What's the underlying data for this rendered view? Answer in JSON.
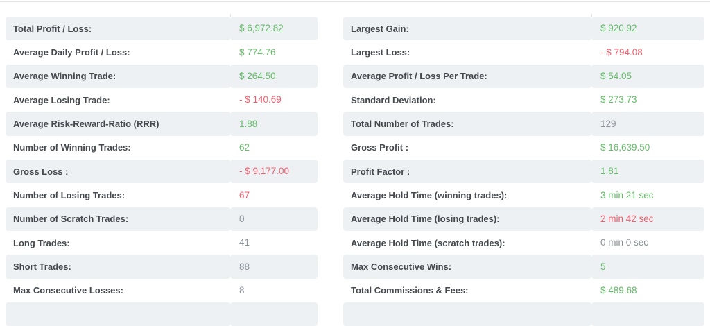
{
  "theme": {
    "shaded_row_bg": "#edf1f4",
    "label_color": "#45494e",
    "positive_color": "#66bb6a",
    "negative_color": "#ef5f6e",
    "neutral_color": "#8b9299",
    "rule_color": "#e2e2e2",
    "tick_color": "#e4e7ea"
  },
  "tables": {
    "left": {
      "rows": [
        {
          "label": "Total Profit / Loss:",
          "value": "$ 6,972.82",
          "tone": "positive"
        },
        {
          "label": "Average Daily Profit / Loss:",
          "value": "$ 774.76",
          "tone": "positive"
        },
        {
          "label": "Average Winning Trade:",
          "value": "$ 264.50",
          "tone": "positive"
        },
        {
          "label": "Average Losing Trade:",
          "value": "- $ 140.69",
          "tone": "negative"
        },
        {
          "label": "Average Risk-Reward-Ratio (RRR)",
          "value": "1.88",
          "tone": "positive"
        },
        {
          "label": "Number of Winning Trades:",
          "value": "62",
          "tone": "positive"
        },
        {
          "label": "Gross Loss :",
          "value": "- $ 9,177.00",
          "tone": "negative"
        },
        {
          "label": "Number of Losing Trades:",
          "value": "67",
          "tone": "negative"
        },
        {
          "label": "Number of Scratch Trades:",
          "value": "0",
          "tone": "neutral"
        },
        {
          "label": "Long Trades:",
          "value": "41",
          "tone": "neutral"
        },
        {
          "label": "Short Trades:",
          "value": "88",
          "tone": "neutral"
        },
        {
          "label": "Max Consecutive Losses:",
          "value": "8",
          "tone": "neutral"
        },
        {
          "label": "",
          "value": "",
          "tone": "neutral"
        }
      ]
    },
    "right": {
      "rows": [
        {
          "label": "Largest Gain:",
          "value": "$ 920.92",
          "tone": "positive"
        },
        {
          "label": "Largest Loss:",
          "value": "- $ 794.08",
          "tone": "negative"
        },
        {
          "label": "Average Profit / Loss Per Trade:",
          "value": "$ 54.05",
          "tone": "positive"
        },
        {
          "label": "Standard Deviation:",
          "value": "$ 273.73",
          "tone": "positive"
        },
        {
          "label": "Total Number of Trades:",
          "value": "129",
          "tone": "neutral"
        },
        {
          "label": "Gross Profit :",
          "value": "$ 16,639.50",
          "tone": "positive"
        },
        {
          "label": "Profit Factor :",
          "value": "1.81",
          "tone": "positive"
        },
        {
          "label": "Average Hold Time (winning trades):",
          "value": "3 min 21 sec",
          "tone": "positive"
        },
        {
          "label": "Average Hold Time (losing trades):",
          "value": "2 min 42 sec",
          "tone": "negative"
        },
        {
          "label": "Average Hold Time (scratch trades):",
          "value": "0 min 0 sec",
          "tone": "neutral"
        },
        {
          "label": "Max Consecutive Wins:",
          "value": "5",
          "tone": "positive"
        },
        {
          "label": "Total Commissions & Fees:",
          "value": "$ 489.68",
          "tone": "positive"
        },
        {
          "label": "",
          "value": "",
          "tone": "neutral"
        }
      ]
    }
  }
}
